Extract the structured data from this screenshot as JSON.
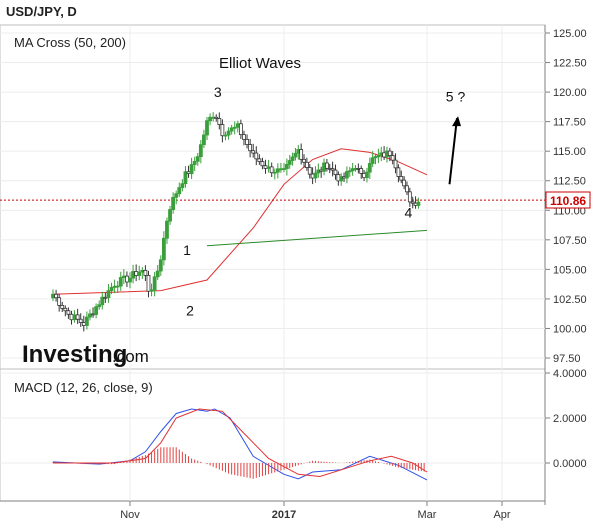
{
  "header": {
    "title": "USD/JPY, D"
  },
  "watermark": {
    "brand": "Investing",
    "suffix": ".com"
  },
  "price_panel": {
    "legend": "MA Cross (50, 200)",
    "annotation_title": "Elliot Waves",
    "current_price_label": "110.86",
    "y_ticks": [
      "125.00",
      "122.50",
      "120.00",
      "117.50",
      "115.00",
      "112.50",
      "110.00",
      "107.50",
      "105.00",
      "102.50",
      "100.00",
      "97.50"
    ]
  },
  "macd_panel": {
    "legend": "MACD (12, 26, close, 9)",
    "y_ticks": [
      "4.0000",
      "2.0000",
      "0.0000"
    ]
  },
  "x_axis": {
    "ticks": [
      "Nov",
      "2017",
      "Mar",
      "Apr"
    ]
  },
  "colors": {
    "up_candle": "#3a9e3a",
    "down_candle": "#333333",
    "ma_fast": "#e03030",
    "trendline": "#2a8a2a",
    "macd_line": "#3050e8",
    "signal_line": "#e03030",
    "histogram": "#e04040",
    "price_line": "#cc0000",
    "arrow": "#000000"
  },
  "chart_data": [
    {
      "type": "candlestick",
      "title": "USD/JPY, D",
      "xlabel": "",
      "ylabel": "",
      "ylim": [
        96.5,
        125.5
      ],
      "grid": true,
      "x_ticks": [
        "Nov",
        "2017",
        "Mar",
        "Apr"
      ],
      "wave_labels": [
        {
          "label": "1",
          "x": 0.37,
          "value": 106.2
        },
        {
          "label": "2",
          "x": 0.39,
          "value": 101.1
        },
        {
          "label": "3",
          "x": 0.57,
          "value": 119.6
        },
        {
          "label": "4",
          "x": 1.87,
          "value": 109.4
        },
        {
          "label": "5 ?",
          "x": 2.19,
          "value": 119.2
        }
      ],
      "last_price": 110.86,
      "series": [
        {
          "name": "Price",
          "values": []
        },
        {
          "name": "MA (50)",
          "points": [
            [
              -0.5,
              102.9
            ],
            [
              0.2,
              103.2
            ],
            [
              0.5,
              104.1
            ],
            [
              0.8,
              108.5
            ],
            [
              1.0,
              112.2
            ],
            [
              1.2,
              114.3
            ],
            [
              1.4,
              115.2
            ],
            [
              1.6,
              114.9
            ],
            [
              1.8,
              114.1
            ],
            [
              2.0,
              113.0
            ]
          ]
        },
        {
          "name": "Trendline",
          "points": [
            [
              0.5,
              107.0
            ],
            [
              2.0,
              108.3
            ]
          ]
        }
      ]
    },
    {
      "type": "line",
      "title": "MACD (12, 26, close, 9)",
      "ylim": [
        -1.6,
        4.0
      ],
      "x_ticks": [
        "Nov",
        "2017",
        "Mar",
        "Apr"
      ],
      "series": [
        {
          "name": "MACD",
          "points": [
            [
              -0.5,
              0.05
            ],
            [
              -0.2,
              -0.05
            ],
            [
              0.0,
              0.1
            ],
            [
              0.1,
              0.5
            ],
            [
              0.2,
              1.4
            ],
            [
              0.3,
              2.2
            ],
            [
              0.4,
              2.4
            ],
            [
              0.5,
              2.3
            ],
            [
              0.55,
              2.4
            ],
            [
              0.65,
              2.0
            ],
            [
              0.8,
              0.3
            ],
            [
              1.0,
              -0.5
            ],
            [
              1.1,
              -0.7
            ],
            [
              1.2,
              -0.4
            ],
            [
              1.4,
              -0.3
            ],
            [
              1.6,
              0.3
            ],
            [
              1.8,
              -0.1
            ],
            [
              2.0,
              -0.75
            ]
          ]
        },
        {
          "name": "Signal",
          "points": [
            [
              -0.5,
              0.0
            ],
            [
              -0.1,
              0.0
            ],
            [
              0.1,
              0.2
            ],
            [
              0.2,
              0.9
            ],
            [
              0.3,
              2.0
            ],
            [
              0.45,
              2.4
            ],
            [
              0.6,
              2.3
            ],
            [
              0.7,
              1.6
            ],
            [
              0.9,
              0.2
            ],
            [
              1.1,
              -0.5
            ],
            [
              1.25,
              -0.6
            ],
            [
              1.4,
              -0.3
            ],
            [
              1.6,
              0.1
            ],
            [
              1.75,
              0.3
            ],
            [
              1.9,
              0.0
            ],
            [
              2.0,
              -0.4
            ]
          ]
        },
        {
          "name": "Histogram",
          "points": [
            [
              -0.5,
              0.05
            ],
            [
              -0.3,
              -0.05
            ],
            [
              -0.1,
              -0.05
            ],
            [
              0.1,
              0.35
            ],
            [
              0.2,
              0.7
            ],
            [
              0.3,
              0.7
            ],
            [
              0.4,
              0.2
            ],
            [
              0.5,
              -0.05
            ],
            [
              0.65,
              -0.5
            ],
            [
              0.8,
              -0.7
            ],
            [
              1.0,
              -0.3
            ],
            [
              1.2,
              0.1
            ],
            [
              1.4,
              0.0
            ],
            [
              1.6,
              0.15
            ],
            [
              1.8,
              -0.2
            ],
            [
              2.0,
              -0.4
            ]
          ]
        }
      ]
    }
  ]
}
